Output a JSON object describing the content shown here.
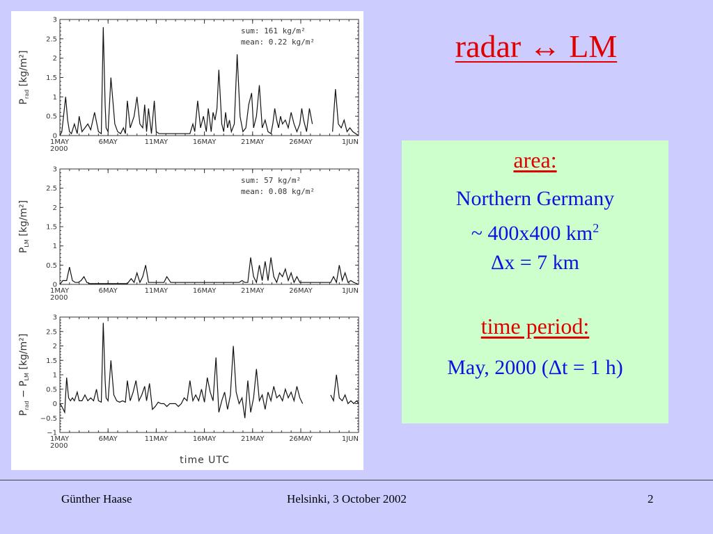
{
  "slide": {
    "title": "radar ↔ LM",
    "info_box": {
      "area_heading": "area:",
      "area_line1": "Northern Germany",
      "area_line2": "~ 400x400 km",
      "area_line2_sup": "2",
      "area_line3": "Δx = 7 km",
      "time_heading": "time period:",
      "time_line": "May, 2000  (Δt = 1 h)"
    },
    "footer": {
      "left": "Günther Haase",
      "center": "Helsinki, 3 October 2002",
      "right": "2"
    },
    "colors": {
      "background": "#ccccff",
      "box_background": "#ccffcc",
      "title": "#e00000",
      "box_text": "#1010e0"
    }
  },
  "chart_data": [
    {
      "type": "line",
      "ylabel_main": "P",
      "ylabel_sub": "rad",
      "ylabel_unit": "[kg/m²]",
      "yticks": [
        "0",
        "0.5",
        "1",
        "1.5",
        "2",
        "2.5",
        "3"
      ],
      "ylim": [
        0,
        3
      ],
      "xticks": [
        "1MAY",
        "6MAY",
        "11MAY",
        "16MAY",
        "21MAY",
        "26MAY",
        "1JUN"
      ],
      "xlim": [
        1,
        32
      ],
      "year_label": "2000",
      "annotation": [
        "sum: 161 kg/m²",
        "mean: 0.22 kg/m²"
      ],
      "series": [
        {
          "x": [
            1.0,
            1.2,
            1.6,
            1.8,
            2.0,
            2.2,
            2.5,
            2.8,
            3.0,
            3.3,
            3.6,
            3.9,
            4.2,
            4.6,
            5.0,
            5.3,
            5.5,
            5.7,
            5.8,
            6.0,
            6.3,
            6.7,
            7.0,
            7.3,
            7.6,
            7.8,
            8.0,
            8.3,
            8.7,
            9.0,
            9.3,
            9.6,
            9.8,
            10.0,
            10.2,
            10.5,
            10.8,
            11.0,
            11.3,
            11.6,
            11.9,
            12.2,
            12.5,
            12.8,
            13.1,
            13.4,
            13.6,
            13.9,
            14.2,
            14.5,
            14.8,
            15.0,
            15.3,
            15.6,
            15.9,
            16.2,
            16.4,
            16.7,
            16.9,
            17.1,
            17.3,
            17.5,
            17.8,
            18.0,
            18.2,
            18.4,
            18.6,
            18.8,
            19.1,
            19.4,
            19.7,
            20.0,
            20.3,
            20.6,
            20.9,
            21.1,
            21.4,
            21.7,
            22.0,
            22.3,
            22.6,
            22.9,
            23.1,
            23.3,
            23.5,
            23.7,
            23.9,
            24.1,
            24.4,
            24.7,
            25.0,
            25.3,
            25.6,
            25.9,
            26.1,
            26.3,
            26.6,
            26.9,
            27.2,
            27.5,
            27.8,
            28.0,
            28.2,
            28.5,
            28.8,
            29.0,
            29.3,
            29.6,
            29.9,
            30.2,
            30.5,
            30.8,
            31.1,
            31.4,
            31.7,
            32.0
          ],
          "y": [
            0,
            0.1,
            1.0,
            0.4,
            0.1,
            0.05,
            0.3,
            0.05,
            0.5,
            0.1,
            0.2,
            0.3,
            0.15,
            0.6,
            0.1,
            0.05,
            2.8,
            0.8,
            0.2,
            0.1,
            1.5,
            0.3,
            0.1,
            0.05,
            0.2,
            0.05,
            0.9,
            0.2,
            0.5,
            1.0,
            0.3,
            0.2,
            0.8,
            0.1,
            0.7,
            0.05,
            0.9,
            0.1,
            0.05,
            0.05,
            0.05,
            0.05,
            0.05,
            0.05,
            0.05,
            0.05,
            0.05,
            0.05,
            0.05,
            0.05,
            0.3,
            0.1,
            0.9,
            0.2,
            0.5,
            0.1,
            0.7,
            0.1,
            0.6,
            0.4,
            0.7,
            1.7,
            0.3,
            0.1,
            0.6,
            0.2,
            0.4,
            0.1,
            0.3,
            2.1,
            0.5,
            0.1,
            0.2,
            0.8,
            1.1,
            0.2,
            0.5,
            1.3,
            0.2,
            0.4,
            0.1,
            0.05,
            0.3,
            0.7,
            0.4,
            0.2,
            0.5,
            0.3,
            0.4,
            0.2,
            0.6,
            0.3,
            0.1,
            0.3,
            0.7,
            0.4,
            0.1,
            0.7,
            0.3,
            null,
            null,
            null,
            null,
            null,
            null,
            null,
            0.1,
            1.2,
            0.3,
            0.2,
            0.4,
            0.1,
            0.2,
            0.1,
            0.05,
            0.0
          ]
        }
      ]
    },
    {
      "type": "line",
      "ylabel_main": "P",
      "ylabel_sub": "LM",
      "ylabel_unit": "[kg/m²]",
      "yticks": [
        "0",
        "0.5",
        "1",
        "1.5",
        "2",
        "2.5",
        "3"
      ],
      "ylim": [
        0,
        3
      ],
      "xticks": [
        "1MAY",
        "6MAY",
        "11MAY",
        "16MAY",
        "21MAY",
        "26MAY",
        "1JUN"
      ],
      "xlim": [
        1,
        32
      ],
      "year_label": "2000",
      "annotation": [
        "sum: 57 kg/m²",
        "mean: 0.08 kg/m²"
      ],
      "series": [
        {
          "x": [
            1.0,
            1.3,
            1.7,
            2.0,
            2.3,
            2.6,
            2.9,
            3.2,
            3.5,
            3.8,
            4.1,
            4.5,
            5.0,
            5.5,
            6.0,
            6.5,
            7.0,
            7.5,
            8.0,
            8.4,
            8.7,
            9.0,
            9.3,
            9.6,
            9.9,
            10.2,
            10.5,
            10.8,
            11.1,
            11.5,
            11.8,
            12.1,
            12.5,
            13.0,
            13.5,
            14.0,
            14.5,
            15.0,
            15.5,
            16.0,
            16.5,
            16.9,
            17.2,
            17.5,
            17.8,
            18.1,
            18.5,
            19.0,
            19.3,
            19.6,
            19.9,
            20.2,
            20.5,
            20.8,
            21.1,
            21.4,
            21.7,
            22.0,
            22.3,
            22.6,
            22.9,
            23.2,
            23.5,
            23.8,
            24.1,
            24.4,
            24.7,
            25.0,
            25.3,
            25.6,
            25.9,
            26.2,
            26.5,
            26.8,
            27.2,
            27.6,
            28.0,
            28.4,
            28.8,
            29.1,
            29.4,
            29.7,
            30.0,
            30.3,
            30.6,
            30.9,
            31.2,
            31.5,
            32.0
          ],
          "y": [
            0,
            0.1,
            0.1,
            0.45,
            0.1,
            0.05,
            0.05,
            0.1,
            0.2,
            0.05,
            0.02,
            0.02,
            0.02,
            0.02,
            0.02,
            0.02,
            0.02,
            0.02,
            0.02,
            0.15,
            0.05,
            0.3,
            0.05,
            0.2,
            0.5,
            0.05,
            0.05,
            0.05,
            0.05,
            0.05,
            0.05,
            0.2,
            0.05,
            0.05,
            0.05,
            0.05,
            0.05,
            0.05,
            0.05,
            0.05,
            0.05,
            0.05,
            0.05,
            0.05,
            0.05,
            0.05,
            0.05,
            0.05,
            0.05,
            0.05,
            0.1,
            0.05,
            0.05,
            0.7,
            0.2,
            0.05,
            0.5,
            0.1,
            0.6,
            0.1,
            0.7,
            0.2,
            0.05,
            0.3,
            0.2,
            0.4,
            0.1,
            0.3,
            0.05,
            0.2,
            0.05,
            0.05,
            0.05,
            0.05,
            0.05,
            0.05,
            0.05,
            0.05,
            0.05,
            0.05,
            0.2,
            0.05,
            0.5,
            0.1,
            0.3,
            0.05,
            0.1,
            0.05,
            0.0
          ]
        }
      ]
    },
    {
      "type": "line",
      "ylabel_main": "P",
      "ylabel_sub": "rad",
      "ylabel_sep": "−",
      "ylabel_main2": "P",
      "ylabel_sub2": "LM",
      "ylabel_unit": "[kg/m²]",
      "yticks": [
        "−1",
        "−0.5",
        "0",
        "0.5",
        "1",
        "1.5",
        "2",
        "2.5",
        "3"
      ],
      "ylim": [
        -1,
        3
      ],
      "xticks": [
        "1MAY",
        "6MAY",
        "11MAY",
        "16MAY",
        "21MAY",
        "26MAY",
        "1JUN"
      ],
      "xlim": [
        1,
        32
      ],
      "year_label": "2000",
      "xlabel": "time UTC",
      "series": [
        {
          "x": [
            1.0,
            1.2,
            1.5,
            1.7,
            1.9,
            2.1,
            2.3,
            2.5,
            2.8,
            3.0,
            3.3,
            3.6,
            3.9,
            4.2,
            4.5,
            4.8,
            5.0,
            5.3,
            5.5,
            5.7,
            5.8,
            6.0,
            6.3,
            6.6,
            6.9,
            7.2,
            7.5,
            7.8,
            8.0,
            8.3,
            8.6,
            8.9,
            9.2,
            9.5,
            9.8,
            10.0,
            10.3,
            10.6,
            10.9,
            11.2,
            11.5,
            11.8,
            12.1,
            12.4,
            12.7,
            13.0,
            13.3,
            13.6,
            13.9,
            14.2,
            14.5,
            14.8,
            15.1,
            15.4,
            15.7,
            16.0,
            16.3,
            16.6,
            16.9,
            17.2,
            17.5,
            17.8,
            18.1,
            18.4,
            18.7,
            19.0,
            19.3,
            19.6,
            19.9,
            20.2,
            20.5,
            20.8,
            21.1,
            21.4,
            21.7,
            22.0,
            22.3,
            22.6,
            22.9,
            23.2,
            23.5,
            23.8,
            24.1,
            24.4,
            24.7,
            25.0,
            25.3,
            25.6,
            25.9,
            26.2,
            26.5,
            26.8,
            27.2,
            27.6,
            28.0,
            28.4,
            28.8,
            29.1,
            29.4,
            29.7,
            30.0,
            30.3,
            30.6,
            30.9,
            31.2,
            31.5,
            31.8,
            32.0
          ],
          "y": [
            0,
            -0.1,
            -0.3,
            0.9,
            0.2,
            0.1,
            0.2,
            0.1,
            0.4,
            0.1,
            0.1,
            0.3,
            0.1,
            0.2,
            0.1,
            0.5,
            0.1,
            0.05,
            2.8,
            0.8,
            0.2,
            0.1,
            1.5,
            0.3,
            0.1,
            0.05,
            0.1,
            0.05,
            0.8,
            0.1,
            0.4,
            0.8,
            0.1,
            0.3,
            0.6,
            0.1,
            0.7,
            -0.2,
            -0.1,
            0.05,
            0.0,
            0.0,
            -0.1,
            0.0,
            0.0,
            0.0,
            -0.1,
            0.0,
            0.2,
            0.1,
            0.8,
            0.1,
            0.3,
            0.1,
            0.5,
            0.05,
            0.9,
            0.4,
            0.1,
            1.6,
            -0.3,
            0.1,
            0.4,
            -0.2,
            0.3,
            2.0,
            0.4,
            0.0,
            0.2,
            -0.5,
            0.8,
            -0.3,
            0.2,
            1.2,
            0.1,
            0.3,
            -0.2,
            0.4,
            0.1,
            0.6,
            0.2,
            0.3,
            0.1,
            0.5,
            0.2,
            0.4,
            0.1,
            0.6,
            0.2,
            0.0,
            null,
            null,
            null,
            null,
            null,
            null,
            null,
            0.3,
            0.1,
            1.0,
            0.2,
            0.1,
            0.3,
            0.0,
            0.1,
            0.0,
            0.1,
            0.0
          ]
        }
      ]
    }
  ]
}
